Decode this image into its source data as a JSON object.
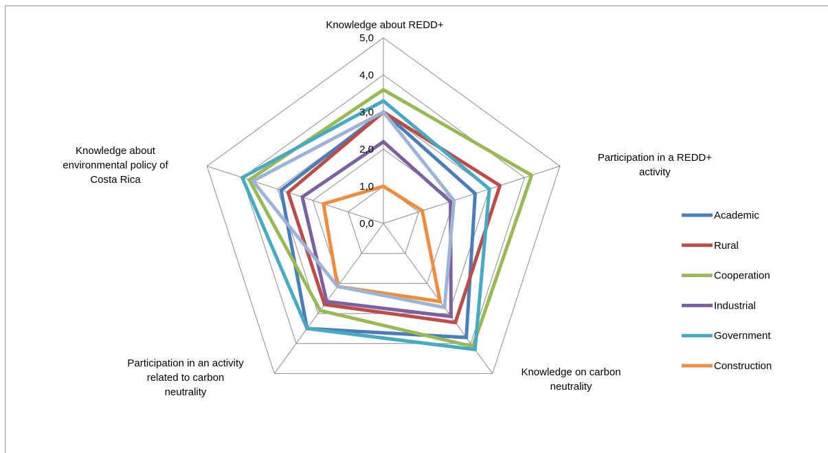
{
  "chart_data": {
    "type": "radar",
    "title": "",
    "axes": [
      "Knowledge about REDD+",
      "Participation in a REDD+ activity",
      "Knowledge on carbon neutrality",
      "Participation in an activity related to carbon neutrality",
      "Knowledge about environmental policy of Costa Rica"
    ],
    "axis_label_lines": [
      [
        "Knowledge about REDD+"
      ],
      [
        "Participation in a REDD+",
        "activity"
      ],
      [
        "Knowledge on carbon",
        "neutrality"
      ],
      [
        "Participation in an activity",
        "related to carbon",
        "neutrality"
      ],
      [
        "Knowledge about",
        "environmental policy of",
        "Costa Rica"
      ]
    ],
    "range": [
      0,
      5
    ],
    "ticks": [
      "0,0",
      "1,0",
      "2,0",
      "3,0",
      "4,0",
      "5,0"
    ],
    "tick_values": [
      0,
      1,
      2,
      3,
      4,
      5
    ],
    "grid": true,
    "legend_position": "right",
    "series": [
      {
        "name": "Academic",
        "color": "#4a7ebb",
        "values": [
          3.0,
          2.6,
          3.8,
          3.5,
          2.9
        ]
      },
      {
        "name": "Rural",
        "color": "#be4b48",
        "values": [
          3.0,
          3.3,
          3.3,
          2.7,
          2.7
        ]
      },
      {
        "name": "Cooperation",
        "color": "#98b954",
        "values": [
          3.6,
          4.2,
          4.1,
          2.9,
          3.8
        ]
      },
      {
        "name": "Industrial",
        "color": "#7d60a0",
        "values": [
          2.2,
          1.9,
          3.1,
          2.6,
          2.3
        ]
      },
      {
        "name": "Government",
        "color": "#46aac5",
        "values": [
          3.3,
          3.0,
          4.2,
          3.5,
          4.0
        ]
      },
      {
        "name": "Construction",
        "color": "#f08c3c",
        "values": [
          1.0,
          1.1,
          2.6,
          2.1,
          1.7
        ]
      },
      {
        "name": "",
        "color": "#9eb3d8",
        "values": [
          3.0,
          2.0,
          2.8,
          2.1,
          3.7
        ]
      }
    ]
  }
}
